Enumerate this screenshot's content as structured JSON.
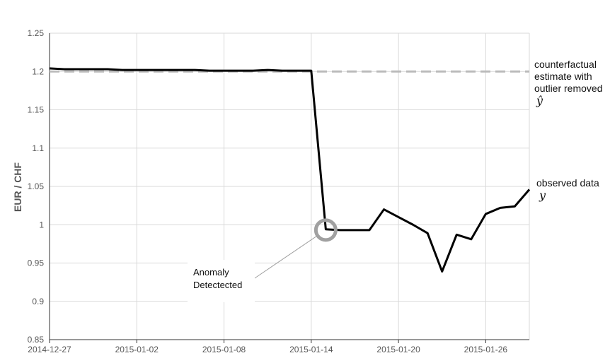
{
  "chart_data": {
    "type": "line",
    "ylabel": "EUR / CHF",
    "ylim": [
      0.85,
      1.25
    ],
    "yticks": [
      0.85,
      0.9,
      0.95,
      1,
      1.05,
      1.1,
      1.15,
      1.2,
      1.25
    ],
    "ytick_labels": [
      "0.85",
      "0.9",
      "0.95",
      "1",
      "1.05",
      "1.1",
      "1.15",
      "1.2",
      "1.25"
    ],
    "xlim": [
      "2014-12-27",
      "2015-01-29"
    ],
    "xticks": [
      "2014-12-27",
      "2015-01-02",
      "2015-01-08",
      "2015-01-14",
      "2015-01-20",
      "2015-01-26"
    ],
    "grid": true,
    "series": [
      {
        "name": "observed data",
        "symbol": "y",
        "color": "#000000",
        "style": "solid",
        "x": [
          "2014-12-27",
          "2014-12-28",
          "2014-12-29",
          "2014-12-30",
          "2014-12-31",
          "2015-01-01",
          "2015-01-02",
          "2015-01-03",
          "2015-01-04",
          "2015-01-05",
          "2015-01-06",
          "2015-01-07",
          "2015-01-08",
          "2015-01-09",
          "2015-01-10",
          "2015-01-11",
          "2015-01-12",
          "2015-01-13",
          "2015-01-14",
          "2015-01-15",
          "2015-01-16",
          "2015-01-17",
          "2015-01-18",
          "2015-01-19",
          "2015-01-20",
          "2015-01-21",
          "2015-01-22",
          "2015-01-23",
          "2015-01-24",
          "2015-01-25",
          "2015-01-26",
          "2015-01-27",
          "2015-01-28",
          "2015-01-29"
        ],
        "y": [
          1.204,
          1.203,
          1.203,
          1.203,
          1.203,
          1.202,
          1.202,
          1.202,
          1.202,
          1.202,
          1.202,
          1.201,
          1.201,
          1.201,
          1.201,
          1.202,
          1.201,
          1.201,
          1.201,
          0.994,
          0.993,
          0.993,
          0.993,
          1.02,
          1.01,
          1.0,
          0.989,
          0.939,
          0.987,
          0.981,
          1.014,
          1.022,
          1.024,
          1.046
        ]
      },
      {
        "name": "counterfactual estimate with outlier removed",
        "symbol": "ŷ",
        "color": "#bbbbbb",
        "style": "dashed",
        "x": [
          "2014-12-27",
          "2015-01-29"
        ],
        "y": [
          1.2,
          1.2
        ]
      }
    ],
    "annotations": [
      {
        "text": "Anomaly\nDetectected",
        "date": "2015-01-15",
        "value": 0.993,
        "marker": "circle",
        "marker_color": "#a0a0a0"
      }
    ],
    "series_labels": [
      {
        "lines": [
          "counterfactual",
          "estimate with",
          "outlier removed"
        ],
        "symbol": "ŷ"
      },
      {
        "lines": [
          "observed data"
        ],
        "symbol": "y"
      }
    ]
  }
}
